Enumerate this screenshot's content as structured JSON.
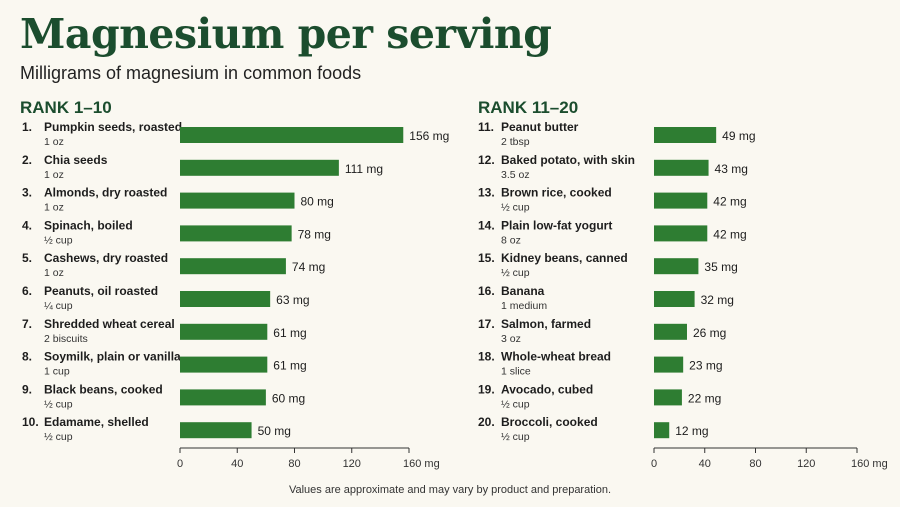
{
  "title": "Magnesium per serving",
  "subtitle": "Milligrams of magnesium in common foods",
  "note": "Values are approximate and may vary by product and preparation.",
  "colors": {
    "title": "#1b4d2e",
    "bar": "#2e7d32",
    "background": "#faf8f1"
  },
  "chart_data": [
    {
      "type": "bar",
      "orientation": "horizontal",
      "title": "RANK 1–10",
      "unit": "mg",
      "xlim": [
        0,
        160
      ],
      "ticks": [
        "0",
        "40",
        "80",
        "120",
        "160 mg"
      ],
      "grid": false,
      "items": [
        {
          "rank": "1.",
          "food": "Pumpkin seeds, roasted",
          "serving": "1 oz",
          "value": 156,
          "label": "156 mg"
        },
        {
          "rank": "2.",
          "food": "Chia seeds",
          "serving": "1 oz",
          "value": 111,
          "label": "111 mg"
        },
        {
          "rank": "3.",
          "food": "Almonds, dry roasted",
          "serving": "1 oz",
          "value": 80,
          "label": "80 mg"
        },
        {
          "rank": "4.",
          "food": "Spinach, boiled",
          "serving": "½ cup",
          "value": 78,
          "label": "78 mg"
        },
        {
          "rank": "5.",
          "food": "Cashews, dry roasted",
          "serving": "1 oz",
          "value": 74,
          "label": "74 mg"
        },
        {
          "rank": "6.",
          "food": "Peanuts, oil roasted",
          "serving": "¼ cup",
          "value": 63,
          "label": "63 mg"
        },
        {
          "rank": "7.",
          "food": "Shredded wheat cereal",
          "serving": "2 biscuits",
          "value": 61,
          "label": "61 mg"
        },
        {
          "rank": "8.",
          "food": "Soymilk, plain or vanilla",
          "serving": "1 cup",
          "value": 61,
          "label": "61 mg"
        },
        {
          "rank": "9.",
          "food": "Black beans, cooked",
          "serving": "½ cup",
          "value": 60,
          "label": "60 mg"
        },
        {
          "rank": "10.",
          "food": "Edamame, shelled",
          "serving": "½ cup",
          "value": 50,
          "label": "50 mg"
        }
      ]
    },
    {
      "type": "bar",
      "orientation": "horizontal",
      "title": "RANK 11–20",
      "unit": "mg",
      "xlim": [
        0,
        160
      ],
      "ticks": [
        "0",
        "40",
        "80",
        "120",
        "160 mg"
      ],
      "grid": false,
      "items": [
        {
          "rank": "11.",
          "food": "Peanut butter",
          "serving": "2 tbsp",
          "value": 49,
          "label": "49 mg"
        },
        {
          "rank": "12.",
          "food": "Baked potato, with skin",
          "serving": "3.5 oz",
          "value": 43,
          "label": "43 mg"
        },
        {
          "rank": "13.",
          "food": "Brown rice, cooked",
          "serving": "½ cup",
          "value": 42,
          "label": "42 mg"
        },
        {
          "rank": "14.",
          "food": "Plain low-fat yogurt",
          "serving": "8 oz",
          "value": 42,
          "label": "42 mg"
        },
        {
          "rank": "15.",
          "food": "Kidney beans, canned",
          "serving": "½ cup",
          "value": 35,
          "label": "35 mg"
        },
        {
          "rank": "16.",
          "food": "Banana",
          "serving": "1 medium",
          "value": 32,
          "label": "32 mg"
        },
        {
          "rank": "17.",
          "food": "Salmon, farmed",
          "serving": "3 oz",
          "value": 26,
          "label": "26 mg"
        },
        {
          "rank": "18.",
          "food": "Whole-wheat bread",
          "serving": "1 slice",
          "value": 23,
          "label": "23 mg"
        },
        {
          "rank": "19.",
          "food": "Avocado, cubed",
          "serving": "½ cup",
          "value": 22,
          "label": "22 mg"
        },
        {
          "rank": "20.",
          "food": "Broccoli, cooked",
          "serving": "½ cup",
          "value": 12,
          "label": "12 mg"
        }
      ]
    }
  ]
}
